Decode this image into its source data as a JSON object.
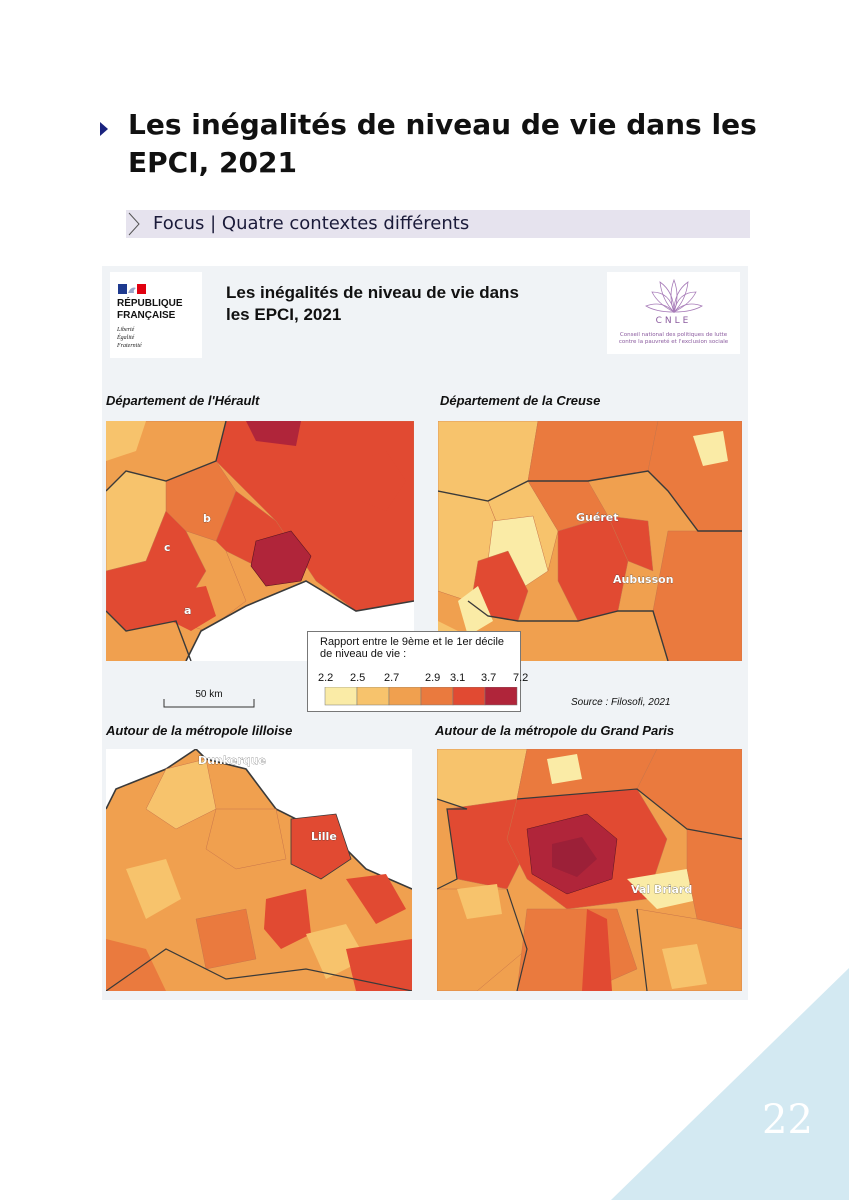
{
  "header": {
    "title": "Les inégalités de niveau de vie dans les EPCI, 2021",
    "focus_label": "Focus | Quatre contextes différents"
  },
  "figure": {
    "title": "Les inégalités de niveau de vie dans les EPCI, 2021",
    "logo_rf": {
      "name": "RÉPUBLIQUE FRANÇAISE",
      "motto": [
        "Liberté",
        "Égalité",
        "Fraternité"
      ]
    },
    "logo_cnle": {
      "name": "CNLE",
      "subtitle": "Conseil national des politiques de lutte contre la pauvreté et l'exclusion sociale"
    },
    "maps": [
      {
        "title": "Département de l'Hérault",
        "labels": [
          "a",
          "b",
          "c"
        ]
      },
      {
        "title": "Département de la Creuse",
        "labels": [
          "Guéret",
          "Aubusson"
        ]
      },
      {
        "title": "Autour de la métropole lilloise",
        "labels": [
          "Dunkerque",
          "Lille"
        ]
      },
      {
        "title": "Autour de la métropole du Grand Paris",
        "labels": [
          "Val Briard"
        ]
      }
    ],
    "legend": {
      "title": "Rapport entre le 9ème et le 1er décile de niveau de vie :",
      "breaks": [
        "2.2",
        "2.5",
        "2.7",
        "2.9",
        "3.1",
        "3.7",
        "7.2"
      ],
      "colors": [
        "#faeba6",
        "#f7c36c",
        "#f0a04f",
        "#ea7a3e",
        "#e14a32",
        "#b0253a"
      ]
    },
    "scale": "50 km",
    "source": "Source : Filosofi, 2021"
  },
  "page_number": "22",
  "colors": {
    "title_arrow": "#1a237e",
    "focus_bar": "#e6e3ee",
    "corner": "#d3e9f2",
    "sea": "#ffffff",
    "boundary": "#3a3a3a"
  }
}
